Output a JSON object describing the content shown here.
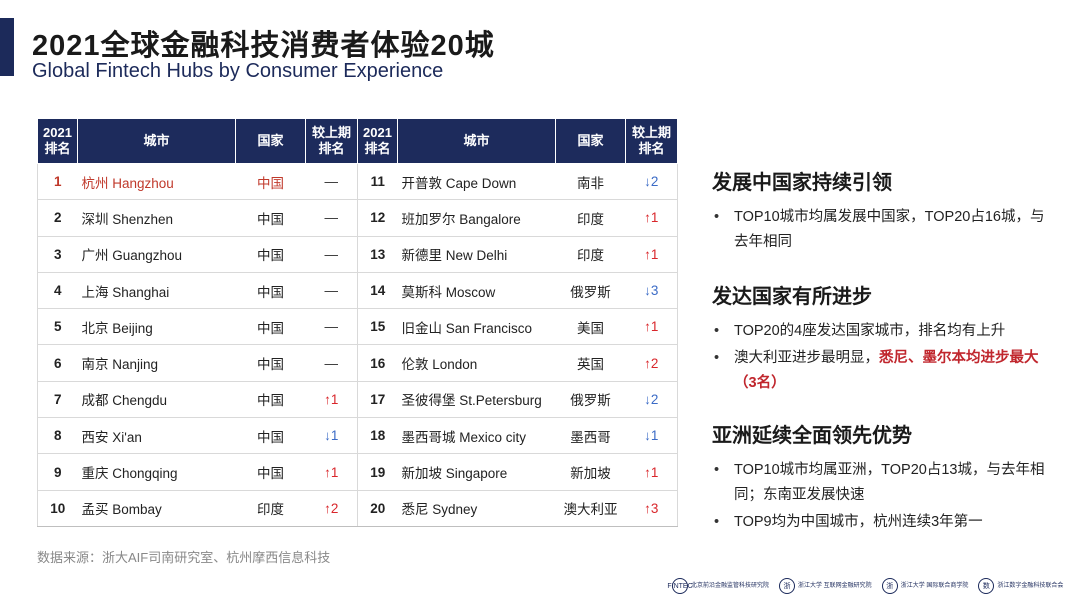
{
  "header": {
    "title_cn": "2021全球金融科技消费者体验20城",
    "title_en": "Global Fintech Hubs by Consumer Experience"
  },
  "table": {
    "headers": {
      "rank": "2021排名",
      "city": "城市",
      "country": "国家",
      "change": "较上期排名"
    },
    "left": [
      {
        "rank": "1",
        "city": "杭州 Hangzhou",
        "country": "中国",
        "change": "—",
        "dir": "same"
      },
      {
        "rank": "2",
        "city": "深圳 Shenzhen",
        "country": "中国",
        "change": "—",
        "dir": "same"
      },
      {
        "rank": "3",
        "city": "广州 Guangzhou",
        "country": "中国",
        "change": "—",
        "dir": "same"
      },
      {
        "rank": "4",
        "city": "上海 Shanghai",
        "country": "中国",
        "change": "—",
        "dir": "same"
      },
      {
        "rank": "5",
        "city": "北京 Beijing",
        "country": "中国",
        "change": "—",
        "dir": "same"
      },
      {
        "rank": "6",
        "city": "南京 Nanjing",
        "country": "中国",
        "change": "—",
        "dir": "same"
      },
      {
        "rank": "7",
        "city": "成都 Chengdu",
        "country": "中国",
        "change": "↑1",
        "dir": "up"
      },
      {
        "rank": "8",
        "city": "西安 Xi'an",
        "country": "中国",
        "change": "↓1",
        "dir": "down"
      },
      {
        "rank": "9",
        "city": "重庆 Chongqing",
        "country": "中国",
        "change": "↑1",
        "dir": "up"
      },
      {
        "rank": "10",
        "city": "孟买 Bombay",
        "country": "印度",
        "change": "↑2",
        "dir": "up"
      }
    ],
    "right": [
      {
        "rank": "11",
        "city": "开普敦 Cape Down",
        "country": "南非",
        "change": "↓2",
        "dir": "down"
      },
      {
        "rank": "12",
        "city": "班加罗尔 Bangalore",
        "country": "印度",
        "change": "↑1",
        "dir": "up"
      },
      {
        "rank": "13",
        "city": "新德里 New Delhi",
        "country": "印度",
        "change": "↑1",
        "dir": "up"
      },
      {
        "rank": "14",
        "city": "莫斯科 Moscow",
        "country": "俄罗斯",
        "change": "↓3",
        "dir": "down"
      },
      {
        "rank": "15",
        "city": "旧金山 San Francisco",
        "country": "美国",
        "change": "↑1",
        "dir": "up"
      },
      {
        "rank": "16",
        "city": "伦敦 London",
        "country": "英国",
        "change": "↑2",
        "dir": "up"
      },
      {
        "rank": "17",
        "city": "圣彼得堡 St.Petersburg",
        "country": "俄罗斯",
        "change": "↓2",
        "dir": "down"
      },
      {
        "rank": "18",
        "city": "墨西哥城 Mexico city",
        "country": "墨西哥",
        "change": "↓1",
        "dir": "down"
      },
      {
        "rank": "19",
        "city": "新加坡 Singapore",
        "country": "新加坡",
        "change": "↑1",
        "dir": "up"
      },
      {
        "rank": "20",
        "city": "悉尼 Sydney",
        "country": "澳大利亚",
        "change": "↑3",
        "dir": "up"
      }
    ]
  },
  "sections": [
    {
      "heading": "发展中国家持续引领",
      "bullets": [
        {
          "text": "TOP10城市均属发展中国家，TOP20占16城，与去年相同",
          "highlight": ""
        }
      ]
    },
    {
      "heading": "发达国家有所进步",
      "bullets": [
        {
          "text": "TOP20的4座发达国家城市，排名均有上升",
          "highlight": ""
        },
        {
          "text": "澳大利亚进步最明显，",
          "highlight": "悉尼、墨尔本均进步最大（3名）"
        }
      ]
    },
    {
      "heading": "亚洲延续全面领先优势",
      "bullets": [
        {
          "text": "TOP10城市均属亚洲，TOP20占13城，与去年相同；东南亚发展快速",
          "highlight": ""
        },
        {
          "text": "TOP9均为中国城市，杭州连续3年第一",
          "highlight": ""
        }
      ]
    }
  ],
  "source": "数据来源：浙大AIF司南研究室、杭州摩西信息科技",
  "logos": [
    {
      "mark": "FINTEC",
      "text": "北京前沿金融监管科技研究院"
    },
    {
      "mark": "浙",
      "text": "浙江大学 互联网金融研究院"
    },
    {
      "mark": "浙",
      "text": "浙江大学 国际联合商学院"
    },
    {
      "mark": "数",
      "text": "浙江数字金融科技联合会"
    }
  ],
  "colors": {
    "header_bg": "#1d2b5c",
    "up": "#d9262b",
    "down": "#3b6bc6",
    "highlight": "#c0262d"
  }
}
